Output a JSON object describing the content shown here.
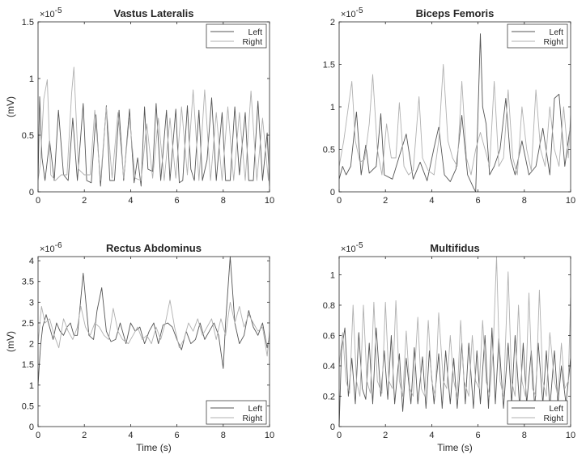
{
  "chart_data": [
    {
      "type": "line",
      "title": "Vastus Lateralis",
      "xlabel": "",
      "ylabel": "(mV)",
      "xlim": [
        0,
        10
      ],
      "ylim": [
        0,
        1.5
      ],
      "y_exponent_label": "×10",
      "y_exponent": "-5",
      "xticks": [
        "0",
        "2",
        "4",
        "6",
        "8",
        "10"
      ],
      "yticks": [
        "0",
        "0.5",
        "1",
        "1.5"
      ],
      "legend_position": "top-right",
      "legend": [
        "Left",
        "Right"
      ],
      "series": [
        {
          "name": "Left",
          "color": "#555555",
          "x": [
            0,
            0.07,
            0.17,
            0.3,
            0.5,
            0.7,
            0.88,
            1.1,
            1.3,
            1.5,
            1.7,
            1.95,
            2.1,
            2.3,
            2.5,
            2.7,
            2.95,
            3.1,
            3.3,
            3.5,
            3.7,
            3.95,
            4.15,
            4.3,
            4.45,
            4.6,
            4.75,
            4.95,
            5.1,
            5.3,
            5.55,
            5.7,
            5.95,
            6.1,
            6.25,
            6.45,
            6.6,
            6.75,
            6.95,
            7.1,
            7.3,
            7.5,
            7.7,
            7.95,
            8.1,
            8.3,
            8.5,
            8.7,
            8.95,
            9.1,
            9.3,
            9.5,
            9.7,
            9.9,
            10
          ],
          "y": [
            0.1,
            0.84,
            0.3,
            0.1,
            0.45,
            0.1,
            0.72,
            0.15,
            0.1,
            0.65,
            0.1,
            0.78,
            0.1,
            0.08,
            0.68,
            0.05,
            0.76,
            0.1,
            0.1,
            0.72,
            0.1,
            0.73,
            0.08,
            0.3,
            0.05,
            0.75,
            0.2,
            0.18,
            0.78,
            0.1,
            0.72,
            0.1,
            0.73,
            0.08,
            0.1,
            0.76,
            0.2,
            0.1,
            0.72,
            0.1,
            0.28,
            0.83,
            0.1,
            0.7,
            0.1,
            0.1,
            0.75,
            0.15,
            0.7,
            0.1,
            0.1,
            0.8,
            0.1,
            0.52,
            0.05
          ]
        },
        {
          "name": "Right",
          "color": "#b0b0b0",
          "x": [
            0,
            0.1,
            0.25,
            0.4,
            0.55,
            0.75,
            1.0,
            1.25,
            1.45,
            1.55,
            1.75,
            2.0,
            2.25,
            2.45,
            2.7,
            2.95,
            3.2,
            3.45,
            3.7,
            3.95,
            4.2,
            4.45,
            4.7,
            4.95,
            5.2,
            5.45,
            5.7,
            5.95,
            6.2,
            6.45,
            6.7,
            6.95,
            7.2,
            7.45,
            7.7,
            7.95,
            8.2,
            8.45,
            8.7,
            8.95,
            9.2,
            9.45,
            9.7,
            9.95,
            10
          ],
          "y": [
            0.1,
            0.25,
            0.82,
            0.99,
            0.15,
            0.1,
            0.15,
            0.15,
            0.87,
            1.1,
            0.2,
            0.15,
            0.15,
            0.72,
            0.1,
            0.75,
            0.12,
            0.7,
            0.12,
            0.65,
            0.12,
            0.1,
            0.6,
            0.12,
            0.65,
            0.1,
            0.65,
            0.12,
            0.75,
            0.15,
            0.9,
            0.1,
            0.9,
            0.1,
            0.7,
            0.1,
            0.75,
            0.1,
            0.7,
            0.1,
            0.89,
            0.1,
            0.65,
            0.1,
            0.6
          ]
        }
      ]
    },
    {
      "type": "line",
      "title": "Biceps Femoris",
      "xlabel": "",
      "ylabel": "",
      "xlim": [
        0,
        10
      ],
      "ylim": [
        0,
        2
      ],
      "y_exponent_label": "×10",
      "y_exponent": "-5",
      "xticks": [
        "0",
        "2",
        "4",
        "6",
        "8",
        "10"
      ],
      "yticks": [
        "0",
        "0.5",
        "1",
        "1.5",
        "2"
      ],
      "legend_position": "top-right",
      "legend": [
        "Left",
        "Right"
      ],
      "series": [
        {
          "name": "Left",
          "color": "#555555",
          "x": [
            0,
            0.15,
            0.3,
            0.5,
            0.75,
            0.95,
            1.15,
            1.3,
            1.6,
            1.8,
            1.95,
            2.3,
            2.6,
            2.9,
            3.2,
            3.5,
            3.8,
            4.1,
            4.3,
            4.55,
            4.8,
            5.05,
            5.3,
            5.55,
            5.8,
            5.9,
            6.1,
            6.2,
            6.35,
            6.5,
            6.7,
            6.95,
            7.2,
            7.4,
            7.6,
            7.9,
            8.2,
            8.5,
            8.8,
            9.1,
            9.3,
            9.5,
            9.75,
            10
          ],
          "y": [
            0.15,
            0.3,
            0.2,
            0.3,
            0.94,
            0.2,
            0.55,
            0.22,
            0.3,
            0.92,
            0.2,
            0.15,
            0.42,
            0.68,
            0.15,
            0.35,
            0.13,
            0.52,
            0.76,
            0.2,
            0.12,
            0.27,
            0.9,
            0.2,
            0.05,
            0.0,
            1.86,
            1.0,
            0.8,
            0.2,
            0.3,
            0.5,
            1.1,
            0.4,
            0.2,
            0.6,
            0.2,
            0.3,
            0.75,
            0.2,
            1.1,
            1.15,
            0.3,
            0.8
          ]
        },
        {
          "name": "Right",
          "color": "#b0b0b0",
          "x": [
            0,
            0.2,
            0.4,
            0.55,
            0.7,
            0.9,
            1.1,
            1.3,
            1.45,
            1.65,
            1.85,
            2.05,
            2.25,
            2.45,
            2.6,
            2.8,
            3.0,
            3.2,
            3.45,
            3.6,
            3.85,
            4.1,
            4.3,
            4.5,
            4.7,
            4.9,
            5.1,
            5.3,
            5.5,
            5.7,
            5.9,
            6.1,
            6.3,
            6.5,
            6.7,
            6.9,
            7.1,
            7.3,
            7.5,
            7.7,
            7.9,
            8.1,
            8.3,
            8.5,
            8.7,
            8.9,
            9.1,
            9.3,
            9.5,
            9.7,
            9.9,
            10
          ],
          "y": [
            0.3,
            0.6,
            1.0,
            1.3,
            0.6,
            0.35,
            0.38,
            0.8,
            1.38,
            0.5,
            0.2,
            0.8,
            0.4,
            0.4,
            1.05,
            0.3,
            0.2,
            0.25,
            1.12,
            0.4,
            0.25,
            0.2,
            0.6,
            1.5,
            0.6,
            0.4,
            0.3,
            1.3,
            0.4,
            0.2,
            0.5,
            0.7,
            0.5,
            0.3,
            1.3,
            0.3,
            0.4,
            1.2,
            0.4,
            0.2,
            1.0,
            0.5,
            0.25,
            1.2,
            0.5,
            0.3,
            1.0,
            0.5,
            0.3,
            1.0,
            0.4,
            0.9
          ]
        }
      ]
    },
    {
      "type": "line",
      "title": "Rectus Abdominus",
      "xlabel": "Time (s)",
      "ylabel": "(mV)",
      "xlim": [
        0,
        10
      ],
      "ylim": [
        0,
        4.1
      ],
      "y_exponent_label": "×10",
      "y_exponent": "-6",
      "xticks": [
        "0",
        "2",
        "4",
        "6",
        "8",
        "10"
      ],
      "yticks": [
        "0",
        "0.5",
        "1",
        "1.5",
        "2",
        "2.5",
        "3",
        "3.5",
        "4"
      ],
      "legend_position": "bottom-right",
      "legend": [
        "Left",
        "Right"
      ],
      "series": [
        {
          "name": "Left",
          "color": "#555555",
          "x": [
            0,
            0.1,
            0.2,
            0.35,
            0.5,
            0.65,
            0.8,
            0.95,
            1.1,
            1.25,
            1.4,
            1.55,
            1.7,
            1.95,
            2.2,
            2.4,
            2.55,
            2.75,
            2.95,
            3.15,
            3.35,
            3.55,
            3.8,
            4.0,
            4.2,
            4.4,
            4.6,
            4.8,
            5.0,
            5.2,
            5.4,
            5.6,
            5.8,
            6.0,
            6.2,
            6.4,
            6.6,
            6.8,
            7.0,
            7.2,
            7.4,
            7.6,
            7.8,
            8.0,
            8.1,
            8.3,
            8.5,
            8.7,
            8.9,
            9.1,
            9.3,
            9.5,
            9.7,
            9.9,
            10
          ],
          "y": [
            1.0,
            1.9,
            2.4,
            2.7,
            2.4,
            2.1,
            2.5,
            2.3,
            2.2,
            2.4,
            2.5,
            2.2,
            2.2,
            3.7,
            2.2,
            2.1,
            2.8,
            3.35,
            2.3,
            2.05,
            2.1,
            2.5,
            2.0,
            2.5,
            2.3,
            2.4,
            2.0,
            2.3,
            2.5,
            2.0,
            2.45,
            2.5,
            2.4,
            2.1,
            1.85,
            2.3,
            2.0,
            2.1,
            2.5,
            2.1,
            2.3,
            2.5,
            2.2,
            1.4,
            2.5,
            4.1,
            2.5,
            2.0,
            2.2,
            2.8,
            2.4,
            2.2,
            2.5,
            1.9,
            2.2
          ]
        },
        {
          "name": "Right",
          "color": "#b0b0b0",
          "x": [
            0,
            0.15,
            0.3,
            0.5,
            0.7,
            0.9,
            1.1,
            1.3,
            1.5,
            1.7,
            1.85,
            2.05,
            2.25,
            2.45,
            2.65,
            2.85,
            3.05,
            3.25,
            3.45,
            3.65,
            3.9,
            4.1,
            4.3,
            4.5,
            4.7,
            4.9,
            5.1,
            5.3,
            5.5,
            5.7,
            5.9,
            6.1,
            6.3,
            6.5,
            6.7,
            6.9,
            7.1,
            7.3,
            7.5,
            7.7,
            7.9,
            8.1,
            8.3,
            8.5,
            8.7,
            8.9,
            9.1,
            9.3,
            9.5,
            9.7,
            9.9,
            10
          ],
          "y": [
            2.0,
            2.9,
            2.5,
            2.6,
            2.2,
            1.9,
            2.6,
            2.3,
            2.1,
            2.4,
            2.9,
            2.4,
            2.2,
            2.5,
            2.4,
            2.2,
            2.1,
            2.85,
            2.3,
            2.1,
            2.0,
            2.2,
            2.4,
            2.1,
            2.2,
            2.0,
            2.4,
            2.1,
            2.5,
            3.05,
            2.4,
            1.9,
            2.1,
            2.5,
            2.3,
            2.6,
            2.2,
            2.4,
            2.6,
            2.1,
            2.6,
            2.2,
            3.0,
            2.5,
            2.9,
            2.4,
            2.7,
            2.5,
            2.3,
            2.4,
            1.7,
            2.3
          ]
        }
      ]
    },
    {
      "type": "line",
      "title": "Multifidus",
      "xlabel": "Time (s)",
      "ylabel": "",
      "xlim": [
        0,
        10
      ],
      "ylim": [
        0,
        1.12
      ],
      "y_exponent_label": "×10",
      "y_exponent": "-5",
      "xticks": [
        "0",
        "2",
        "4",
        "6",
        "8",
        "10"
      ],
      "yticks": [
        "0",
        "0.2",
        "0.4",
        "0.6",
        "0.8",
        "1"
      ],
      "legend_position": "bottom-right",
      "legend": [
        "Left",
        "Right"
      ],
      "series": [
        {
          "name": "Left",
          "color": "#555555",
          "x": [
            0,
            0.1,
            0.25,
            0.4,
            0.55,
            0.7,
            0.85,
            1.0,
            1.15,
            1.3,
            1.45,
            1.6,
            1.8,
            1.95,
            2.1,
            2.25,
            2.4,
            2.6,
            2.75,
            2.9,
            3.1,
            3.25,
            3.4,
            3.6,
            3.75,
            3.9,
            4.1,
            4.3,
            4.45,
            4.6,
            4.8,
            4.95,
            5.1,
            5.3,
            5.45,
            5.6,
            5.8,
            5.95,
            6.1,
            6.3,
            6.45,
            6.6,
            6.75,
            6.9,
            7.1,
            7.3,
            7.45,
            7.6,
            7.8,
            7.95,
            8.1,
            8.3,
            8.45,
            8.6,
            8.8,
            8.95,
            9.1,
            9.3,
            9.45,
            9.6,
            9.8,
            10
          ],
          "y": [
            0.0,
            0.5,
            0.65,
            0.2,
            0.45,
            0.15,
            0.62,
            0.25,
            0.18,
            0.55,
            0.15,
            0.65,
            0.2,
            0.5,
            0.18,
            0.6,
            0.15,
            0.48,
            0.1,
            0.45,
            0.15,
            0.52,
            0.15,
            0.46,
            0.12,
            0.5,
            0.15,
            0.48,
            0.12,
            0.5,
            0.15,
            0.45,
            0.12,
            0.55,
            0.15,
            0.55,
            0.12,
            0.5,
            0.15,
            0.6,
            0.12,
            0.65,
            0.15,
            0.58,
            0.12,
            0.55,
            0.15,
            0.6,
            0.12,
            0.55,
            0.15,
            0.5,
            0.12,
            0.55,
            0.15,
            0.5,
            0.12,
            0.5,
            0.15,
            0.4,
            0.15,
            0.45
          ]
        },
        {
          "name": "Right",
          "color": "#b0b0b0",
          "x": [
            0,
            0.15,
            0.3,
            0.45,
            0.6,
            0.75,
            0.9,
            1.05,
            1.2,
            1.35,
            1.5,
            1.65,
            1.85,
            2.0,
            2.15,
            2.3,
            2.45,
            2.6,
            2.75,
            2.9,
            3.05,
            3.2,
            3.4,
            3.55,
            3.7,
            3.85,
            4.0,
            4.15,
            4.3,
            4.5,
            4.65,
            4.8,
            4.95,
            5.1,
            5.25,
            5.4,
            5.6,
            5.75,
            5.9,
            6.05,
            6.2,
            6.35,
            6.5,
            6.65,
            6.8,
            6.95,
            7.1,
            7.3,
            7.45,
            7.6,
            7.75,
            7.9,
            8.05,
            8.2,
            8.35,
            8.5,
            8.65,
            8.8,
            8.95,
            9.1,
            9.3,
            9.45,
            9.6,
            9.75,
            9.9,
            10
          ],
          "y": [
            0.4,
            0.62,
            0.3,
            0.22,
            0.8,
            0.3,
            0.2,
            0.8,
            0.3,
            0.22,
            0.82,
            0.3,
            0.22,
            0.82,
            0.3,
            0.25,
            0.83,
            0.3,
            0.2,
            0.63,
            0.25,
            0.2,
            0.72,
            0.25,
            0.2,
            0.7,
            0.3,
            0.2,
            0.75,
            0.3,
            0.25,
            0.6,
            0.3,
            0.2,
            0.7,
            0.3,
            0.2,
            0.6,
            0.3,
            0.25,
            0.7,
            0.3,
            0.2,
            0.5,
            1.12,
            0.3,
            0.2,
            1.02,
            0.3,
            0.2,
            0.8,
            0.3,
            0.2,
            0.88,
            0.25,
            0.2,
            0.9,
            0.3,
            0.2,
            0.62,
            0.3,
            0.2,
            0.55,
            0.25,
            0.3,
            0.85
          ]
        }
      ]
    }
  ]
}
